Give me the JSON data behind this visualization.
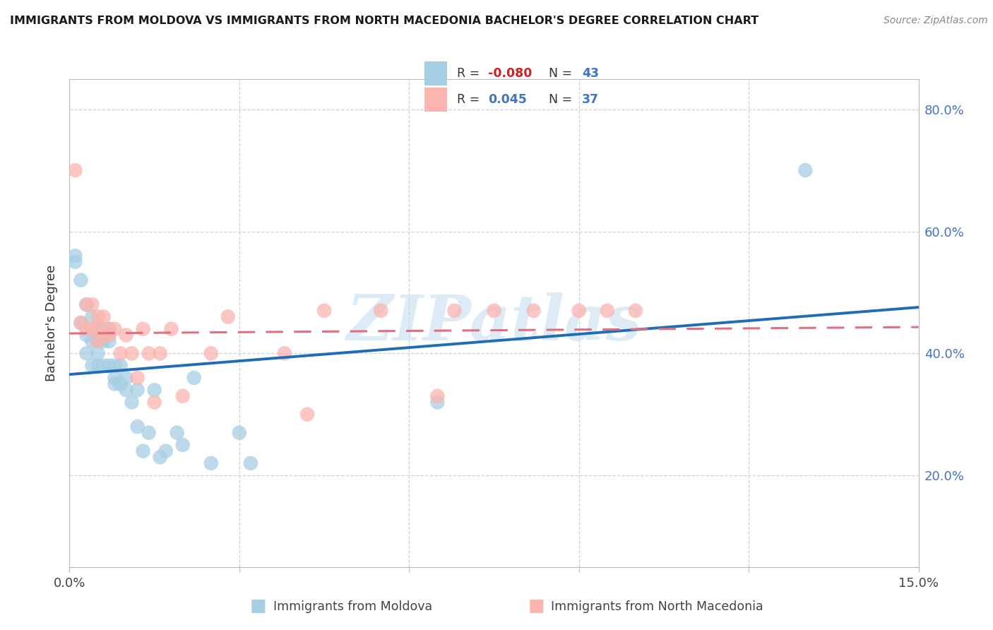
{
  "title": "IMMIGRANTS FROM MOLDOVA VS IMMIGRANTS FROM NORTH MACEDONIA BACHELOR'S DEGREE CORRELATION CHART",
  "source": "Source: ZipAtlas.com",
  "ylabel": "Bachelor's Degree",
  "xlabel_moldova": "Immigrants from Moldova",
  "xlabel_north_macedonia": "Immigrants from North Macedonia",
  "xlim": [
    0.0,
    0.15
  ],
  "ylim": [
    0.05,
    0.85
  ],
  "R_moldova": -0.08,
  "N_moldova": 43,
  "R_north_macedonia": 0.045,
  "N_north_macedonia": 37,
  "color_moldova": "#a6cee3",
  "color_north_macedonia": "#fbb4ae",
  "color_moldova_line": "#1f6eb5",
  "color_nm_line": "#e07080",
  "watermark": "ZIPatlas",
  "moldova_x": [
    0.001,
    0.001,
    0.002,
    0.002,
    0.003,
    0.003,
    0.003,
    0.004,
    0.004,
    0.004,
    0.005,
    0.005,
    0.005,
    0.005,
    0.006,
    0.006,
    0.006,
    0.007,
    0.007,
    0.007,
    0.008,
    0.008,
    0.008,
    0.009,
    0.009,
    0.01,
    0.01,
    0.011,
    0.012,
    0.012,
    0.013,
    0.014,
    0.015,
    0.016,
    0.017,
    0.019,
    0.02,
    0.022,
    0.025,
    0.03,
    0.032,
    0.065,
    0.13
  ],
  "moldova_y": [
    0.56,
    0.55,
    0.52,
    0.45,
    0.48,
    0.43,
    0.4,
    0.46,
    0.42,
    0.38,
    0.44,
    0.42,
    0.4,
    0.38,
    0.44,
    0.42,
    0.38,
    0.44,
    0.42,
    0.38,
    0.38,
    0.36,
    0.35,
    0.38,
    0.35,
    0.36,
    0.34,
    0.32,
    0.28,
    0.34,
    0.24,
    0.27,
    0.34,
    0.23,
    0.24,
    0.27,
    0.25,
    0.36,
    0.22,
    0.27,
    0.22,
    0.32,
    0.7
  ],
  "north_macedonia_x": [
    0.001,
    0.002,
    0.003,
    0.003,
    0.004,
    0.004,
    0.005,
    0.005,
    0.005,
    0.006,
    0.006,
    0.007,
    0.007,
    0.008,
    0.009,
    0.01,
    0.011,
    0.012,
    0.013,
    0.014,
    0.015,
    0.016,
    0.018,
    0.02,
    0.025,
    0.028,
    0.038,
    0.042,
    0.045,
    0.055,
    0.065,
    0.068,
    0.075,
    0.082,
    0.09,
    0.095,
    0.1
  ],
  "north_macedonia_y": [
    0.7,
    0.45,
    0.44,
    0.48,
    0.44,
    0.48,
    0.44,
    0.42,
    0.46,
    0.43,
    0.46,
    0.43,
    0.44,
    0.44,
    0.4,
    0.43,
    0.4,
    0.36,
    0.44,
    0.4,
    0.32,
    0.4,
    0.44,
    0.33,
    0.4,
    0.46,
    0.4,
    0.3,
    0.47,
    0.47,
    0.33,
    0.47,
    0.47,
    0.47,
    0.47,
    0.47,
    0.47
  ]
}
